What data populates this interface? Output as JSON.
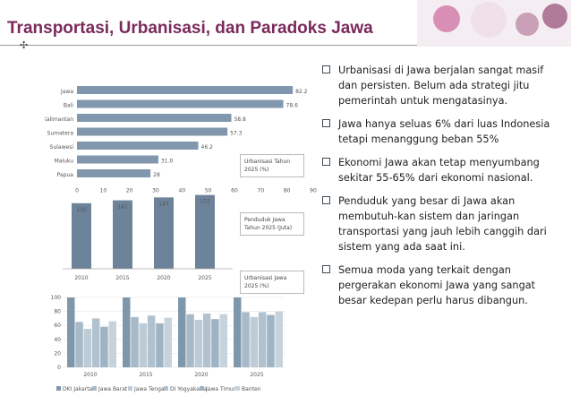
{
  "title": "Transportasi,  Urbanisasi, dan Paradoks Jawa",
  "bullets": [
    "Urbanisasi di Jawa berjalan sangat masif dan persisten. Belum ada strategi jitu pemerintah untuk mengatasinya.",
    "Jawa hanya seluas 6% dari luas Indonesia tetapi menanggung beban 55%",
    "Ekonomi Jawa akan tetap menyumbang sekitar 55-65% dari ekonomi nasional.",
    "Penduduk yang besar di Jawa akan membutuh-kan sistem dan jaringan transportasi yang jauh lebih canggih dari sistem yang ada saat ini.",
    "Semua moda yang terkait dengan pergerakan ekonomi Jawa yang sangat besar kedepan perlu harus dibangun."
  ],
  "colors": {
    "title": "#7a2a5a",
    "bar": "#8097ad",
    "bar_dark": "#6d8399"
  },
  "chart_data": [
    {
      "type": "bar",
      "orientation": "horizontal",
      "categories": [
        "Jawa",
        "Bali",
        "Kalimantan",
        "Sumatera",
        "Sulawesi",
        "Maluku",
        "Papua"
      ],
      "value_labels": [
        "82.2",
        "78.6",
        "58.8",
        "57.3",
        "46.2",
        "31.0",
        "28"
      ],
      "values": [
        82.2,
        78.6,
        58.8,
        57.3,
        46.2,
        31.0,
        28
      ],
      "xlim": [
        0,
        90
      ],
      "xticks": [
        "0",
        "10",
        "20",
        "30",
        "40",
        "50",
        "60",
        "70",
        "80",
        "90"
      ],
      "legend": "Urbanisasi Tahun 2025 (%)"
    },
    {
      "type": "bar",
      "categories": [
        "2010",
        "2015",
        "2020",
        "2025"
      ],
      "values": [
        135,
        141,
        147,
        152
      ],
      "value_labels": [
        "135",
        "141",
        "147",
        "152"
      ],
      "legend": "Penduduk Jawa Tahun 2025 (Juta)"
    },
    {
      "type": "bar",
      "categories": [
        "2010",
        "2015",
        "2020",
        "2025"
      ],
      "series": [
        {
          "name": "DKI Jakarta",
          "values": [
            100,
            100,
            100,
            100
          ]
        },
        {
          "name": "Jawa Barat",
          "values": [
            65,
            72,
            76,
            79
          ]
        },
        {
          "name": "Jawa Tengah",
          "values": [
            55,
            63,
            68,
            72
          ]
        },
        {
          "name": "DI Yogyakarta",
          "values": [
            70,
            74,
            77,
            79
          ]
        },
        {
          "name": "Jawa Timur",
          "values": [
            58,
            63,
            69,
            75
          ]
        },
        {
          "name": "Banten",
          "values": [
            66,
            71,
            76,
            80
          ]
        }
      ],
      "ylim": [
        0,
        100
      ],
      "yticks": [
        "0",
        "20",
        "40",
        "60",
        "80",
        "100"
      ],
      "legend": "Urbanisasi Jawa 2025 (%)"
    }
  ]
}
